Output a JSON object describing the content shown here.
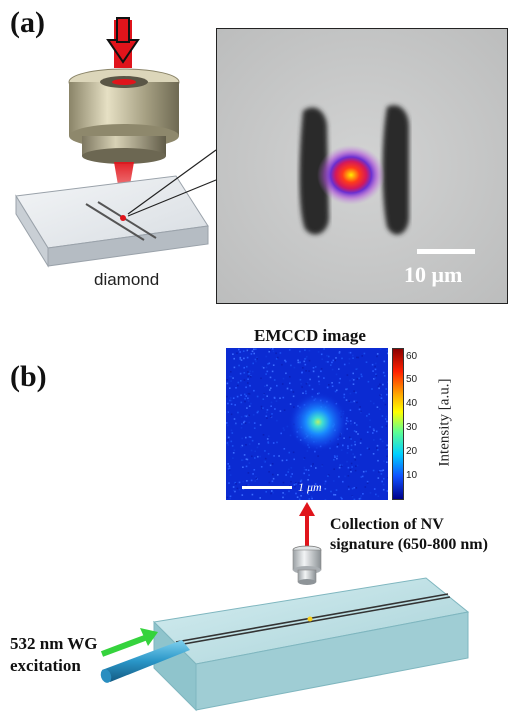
{
  "panel_a": {
    "label": "(a)",
    "material_label": "diamond",
    "scale_bar_label": "10 μm"
  },
  "panel_b": {
    "label": "(b)",
    "image_title": "EMCCD image",
    "scale_bar_label": "1 μm",
    "colorbar_label": "Intensity [a.u.]",
    "colorbar_ticks": [
      "60",
      "50",
      "40",
      "30",
      "20",
      "10"
    ],
    "collection_label_line1": "Collection of NV",
    "collection_label_line2": "signature (650-800 nm)",
    "excitation_label_line1": "532 nm WG",
    "excitation_label_line2": "excitation"
  },
  "colors": {
    "laser_red": "#e0141b",
    "excitation_green": "#35d33d",
    "chip_blue": "#b8dde2"
  }
}
